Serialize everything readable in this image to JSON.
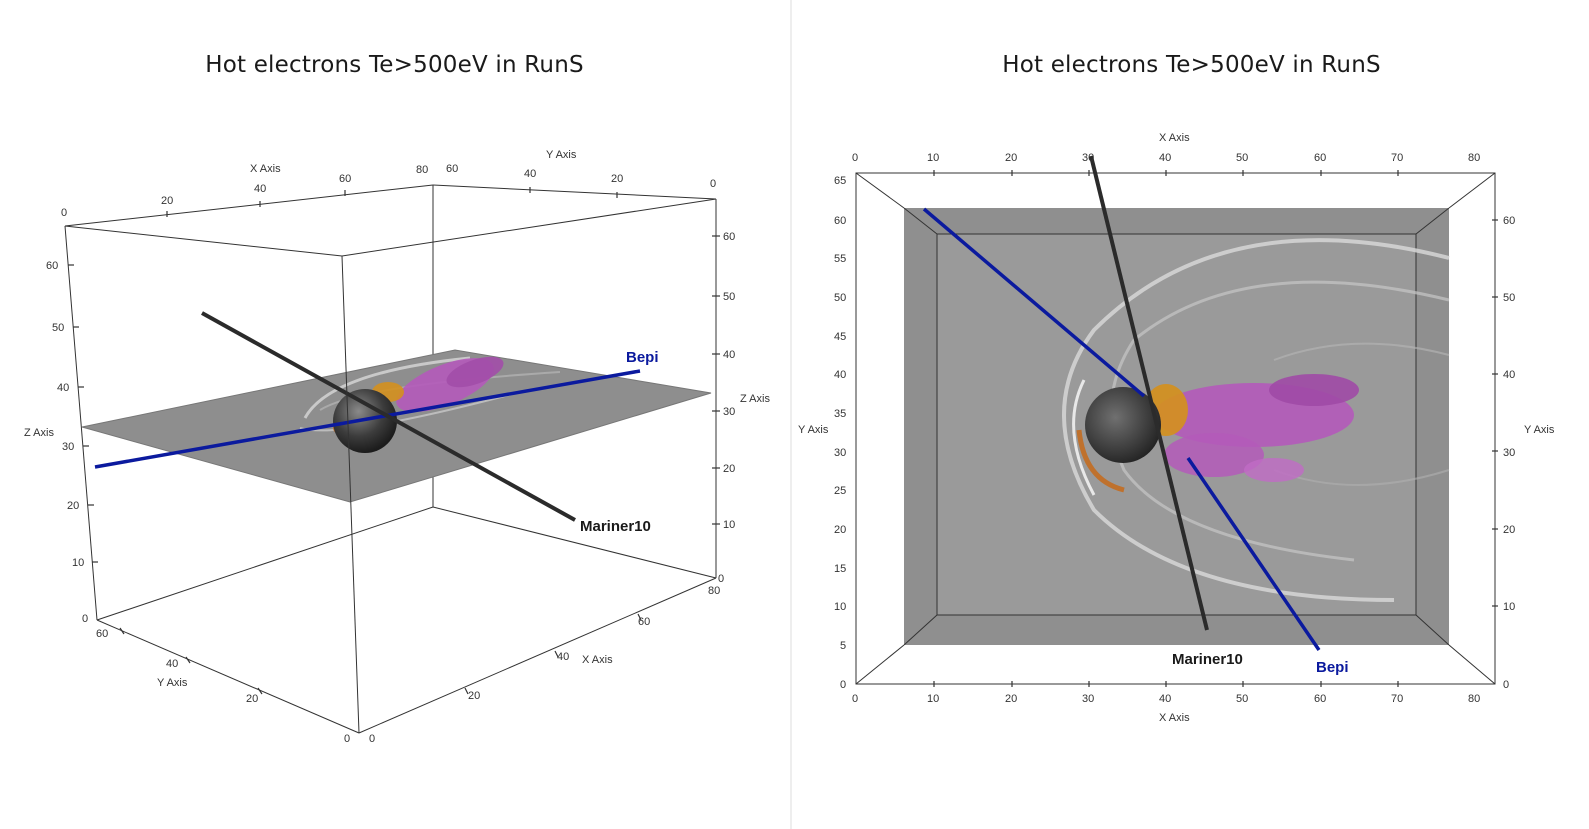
{
  "left": {
    "title": "Hot electrons Te>500eV in RunS",
    "x_axis_label": "X Axis",
    "y_axis_label": "Y Axis",
    "z_axis_label": "Z Axis",
    "x_axis_label_2": "X Axis",
    "y_axis_label_2": "Y Axis",
    "z_axis_label_2": "Z Axis",
    "top_x_ticks": [
      "0",
      "20",
      "40",
      "60",
      "80"
    ],
    "top_y_ticks": [
      "60",
      "40",
      "20",
      "0"
    ],
    "left_z_ticks": [
      "60",
      "50",
      "40",
      "30",
      "20",
      "10",
      "0"
    ],
    "right_z_ticks": [
      "60",
      "50",
      "40",
      "30",
      "20",
      "10",
      "0"
    ],
    "bottom_y_ticks": [
      "60",
      "40",
      "20",
      "0"
    ],
    "bottom_x_ticks": [
      "0",
      "20",
      "40",
      "60",
      "80"
    ],
    "track_bepi": "Bepi",
    "track_mariner": "Mariner10"
  },
  "right": {
    "title": "Hot electrons Te>500eV in RunS",
    "x_axis_label_top": "X Axis",
    "x_axis_label_bottom": "X Axis",
    "y_axis_label_left": "Y Axis",
    "y_axis_label_right": "Y Axis",
    "top_x_ticks": [
      "0",
      "10",
      "20",
      "30",
      "40",
      "50",
      "60",
      "70",
      "80"
    ],
    "bottom_x_ticks": [
      "0",
      "10",
      "20",
      "30",
      "40",
      "50",
      "60",
      "70",
      "80"
    ],
    "left_y_ticks": [
      "65",
      "60",
      "55",
      "50",
      "45",
      "40",
      "35",
      "30",
      "25",
      "20",
      "15",
      "10",
      "5",
      "0"
    ],
    "right_y_ticks": [
      "60",
      "50",
      "40",
      "30",
      "20",
      "10",
      "0"
    ],
    "track_bepi": "Bepi",
    "track_mariner": "Mariner10"
  },
  "colors": {
    "bepi": "#0b1a9e",
    "mariner": "#2a2a2a",
    "plane": "#8c8c8c",
    "hot_magenta": "#b45aba",
    "hot_orange": "#d4901e"
  }
}
